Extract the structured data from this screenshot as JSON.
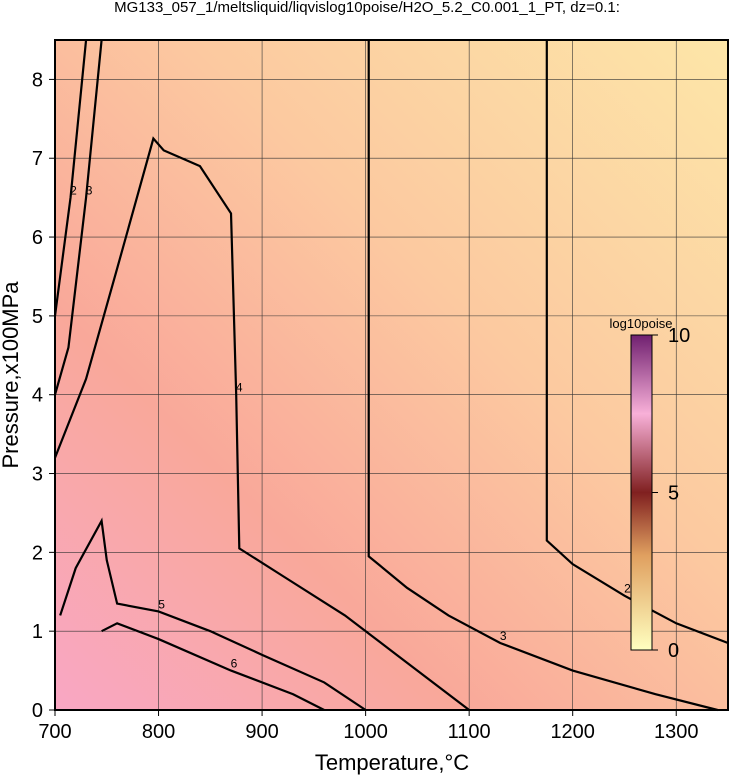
{
  "chart_data": {
    "type": "contour",
    "title": "MG133_057_1/meltsliquid/liqvislog10poise/H2O_5.2_C0.001_1_PT, dz=0.1:",
    "x_label": "Temperature,°C",
    "y_label": "Pressure,x100MPa",
    "xlim": [
      700,
      1350
    ],
    "ylim": [
      0,
      8.5
    ],
    "xticks": [
      700,
      800,
      900,
      1000,
      1100,
      1200,
      1300
    ],
    "yticks": [
      0,
      1,
      2,
      3,
      4,
      5,
      6,
      7,
      8
    ],
    "grid": true,
    "colorbar": {
      "label": "log10poise",
      "lim": [
        0,
        10
      ],
      "ticks": [
        0,
        5,
        10
      ]
    },
    "contours": [
      {
        "level": 2,
        "x": [
          1175,
          1175,
          1200,
          1250,
          1300,
          1350
        ],
        "y": [
          8.5,
          2.15,
          1.85,
          1.45,
          1.1,
          0.85
        ]
      },
      {
        "level": 3,
        "x": [
          1003,
          1003,
          1040,
          1080,
          1130,
          1200,
          1280,
          1340
        ],
        "y": [
          8.5,
          1.95,
          1.55,
          1.2,
          0.85,
          0.5,
          0.2,
          0
        ]
      },
      {
        "level": 4,
        "x": [
          700,
          730,
          760,
          795,
          805,
          840,
          870,
          875,
          878,
          920,
          980,
          1030,
          1070,
          1100
        ],
        "y": [
          3.2,
          4.2,
          5.6,
          7.25,
          7.1,
          6.9,
          6.3,
          4,
          2.05,
          1.7,
          1.2,
          0.7,
          0.3,
          0
        ]
      },
      {
        "level": 5,
        "x": [
          705,
          720,
          745,
          750,
          760,
          800,
          850,
          900,
          960,
          1000
        ],
        "y": [
          1.2,
          1.8,
          2.4,
          1.9,
          1.35,
          1.25,
          1.0,
          0.7,
          0.35,
          0
        ]
      },
      {
        "level": 6,
        "x": [
          745,
          760,
          800,
          870,
          930,
          960
        ],
        "y": [
          1.0,
          1.1,
          0.9,
          0.5,
          0.2,
          0
        ]
      },
      {
        "level": 3,
        "x": [
          700,
          713,
          730,
          745
        ],
        "y": [
          4.0,
          4.6,
          6.5,
          8.5
        ]
      },
      {
        "level": 2,
        "x": [
          700,
          715,
          730
        ],
        "y": [
          5.0,
          6.5,
          8.5
        ]
      }
    ]
  }
}
